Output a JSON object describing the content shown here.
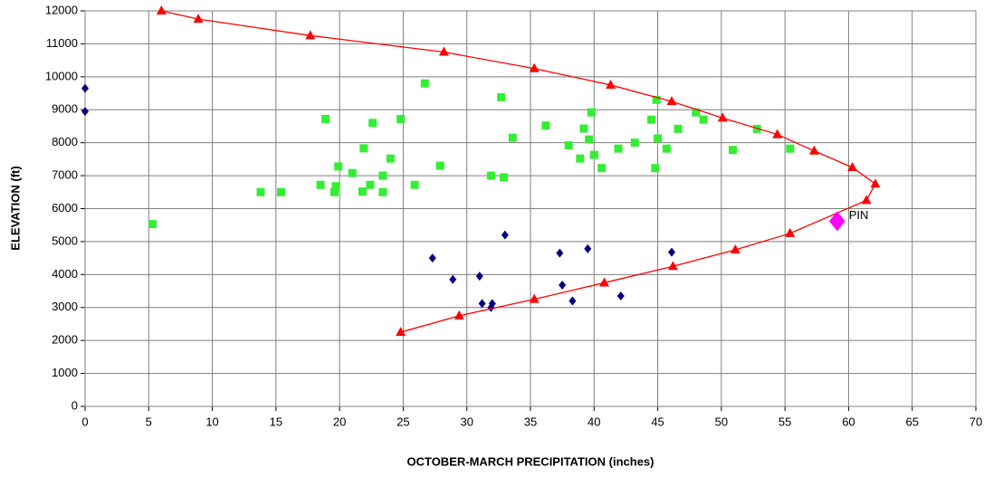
{
  "chart_data": {
    "type": "scatter",
    "x_label": "OCTOBER-MARCH PRECIPITATION (inches)",
    "y_label": "ELEVATION (ft)",
    "xlim": [
      0,
      70
    ],
    "xticks": [
      0,
      5,
      10,
      15,
      20,
      25,
      30,
      35,
      40,
      45,
      50,
      55,
      60,
      65,
      70
    ],
    "ylim": [
      0,
      12000
    ],
    "yticks": [
      0,
      1000,
      2000,
      3000,
      4000,
      5000,
      6000,
      7000,
      8000,
      9000,
      10000,
      11000,
      12000
    ],
    "grid": true,
    "series": [
      {
        "color": "#000080",
        "marker": "diamond",
        "x": [
          0,
          0,
          27.3,
          28.9,
          31,
          31.2,
          32,
          31.9,
          33,
          37.3,
          37.5,
          38.3,
          39.5,
          42.1,
          46.1
        ],
        "values": [
          9650,
          8950,
          4500,
          3850,
          3950,
          3120,
          3120,
          3000,
          5200,
          4650,
          3680,
          3200,
          4780,
          3350,
          4680
        ]
      },
      {
        "color": "#33ee33",
        "marker": "square",
        "x": [
          5.3,
          13.8,
          15.4,
          18.5,
          18.9,
          19.6,
          19.7,
          19.9,
          21,
          21.8,
          21.9,
          22.4,
          22.6,
          23.4,
          23.4,
          24,
          24.8,
          25.9,
          26.7,
          27.9,
          31.9,
          32.7,
          32.9,
          33.6,
          36.2,
          38,
          38.9,
          39.2,
          39.6,
          39.8,
          40,
          40.6,
          41.9,
          43.2,
          44.5,
          44.8,
          44.9,
          45,
          45.7,
          46.6,
          48,
          48.6,
          50.9,
          52.8,
          55.4
        ],
        "values": [
          5530,
          6500,
          6500,
          6720,
          8720,
          6500,
          6680,
          7280,
          7080,
          6520,
          7830,
          6720,
          8600,
          6500,
          7000,
          7520,
          8720,
          6720,
          9800,
          7300,
          7000,
          9380,
          6950,
          8150,
          8520,
          7920,
          7520,
          8430,
          8100,
          8920,
          7630,
          7230,
          7820,
          8000,
          8700,
          7230,
          9300,
          8130,
          7820,
          8420,
          8920,
          8700,
          7780,
          8420,
          7820
        ]
      },
      {
        "color": "#ff0000",
        "marker": "triangle",
        "line": true,
        "x": [
          6,
          8.9,
          17.7,
          28.2,
          35.3,
          41.3,
          46.1,
          50.1,
          54.4,
          57.3,
          60.3,
          62.1,
          61.4,
          55.4,
          51.1,
          46.2,
          40.8,
          35.3,
          29.4,
          24.8
        ],
        "values": [
          12000,
          11750,
          11250,
          10750,
          10250,
          9750,
          9250,
          8750,
          8250,
          7750,
          7250,
          6750,
          6250,
          5250,
          4750,
          4250,
          3750,
          3250,
          2750,
          2250
        ]
      },
      {
        "color": "#ff00ff",
        "marker": "big-diamond",
        "label": "PIN",
        "x": [
          59.1
        ],
        "values": [
          5620
        ]
      }
    ]
  }
}
